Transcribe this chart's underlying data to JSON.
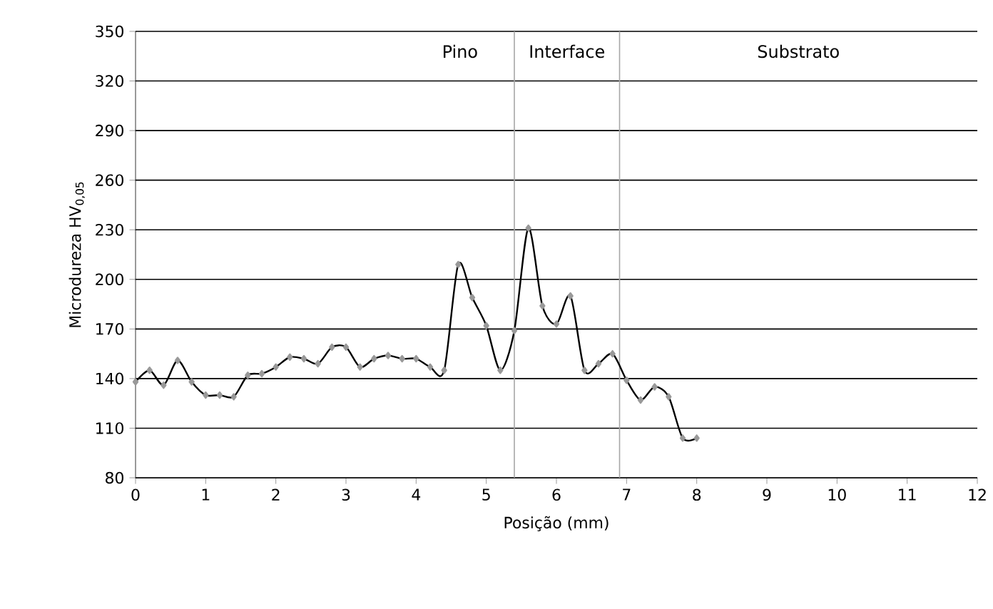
{
  "chart_data": {
    "type": "line",
    "xlabel": "Posição (mm)",
    "ylabel": "Microdureza HV$_{0,05}$",
    "x": [
      0,
      0.2,
      0.4,
      0.6,
      0.8,
      1.0,
      1.2,
      1.4,
      1.6,
      1.8,
      2.0,
      2.2,
      2.4,
      2.6,
      2.8,
      3.0,
      3.2,
      3.4,
      3.6,
      3.8,
      4.0,
      4.2,
      4.4,
      4.6,
      4.8,
      5.0,
      5.2,
      5.4,
      5.6,
      5.8,
      6.0,
      6.2,
      6.4,
      6.6,
      6.8,
      7.0,
      7.2,
      7.4,
      7.6,
      7.8,
      8.0
    ],
    "series": [
      {
        "color": "#000000",
        "values": [
          138,
          145,
          136,
          151,
          138,
          130,
          130,
          129,
          142,
          143,
          147,
          153,
          152,
          149,
          159,
          159,
          147,
          152,
          154,
          152,
          152,
          147,
          145,
          209,
          189,
          172,
          145,
          169,
          231,
          184,
          173,
          190,
          145,
          149,
          155,
          139,
          127,
          135,
          129,
          104,
          104
        ]
      }
    ],
    "xlim": [
      0,
      12
    ],
    "xticks": [
      0,
      1,
      2,
      3,
      4,
      5,
      6,
      7,
      8,
      9,
      10,
      11,
      12
    ],
    "ylim": [
      80,
      350
    ],
    "yticks": [
      80,
      110,
      140,
      170,
      200,
      230,
      260,
      290,
      320,
      350
    ],
    "grid": "y",
    "marker": "diamond",
    "line_style": "solid",
    "ref_lines": [
      {
        "axis": "x",
        "value": 5.4,
        "color": "#a6a6a6"
      },
      {
        "axis": "x",
        "value": 6.9,
        "color": "#a6a6a6"
      }
    ],
    "annotations": [
      "Pino",
      "Interface",
      "Substrato"
    ]
  }
}
